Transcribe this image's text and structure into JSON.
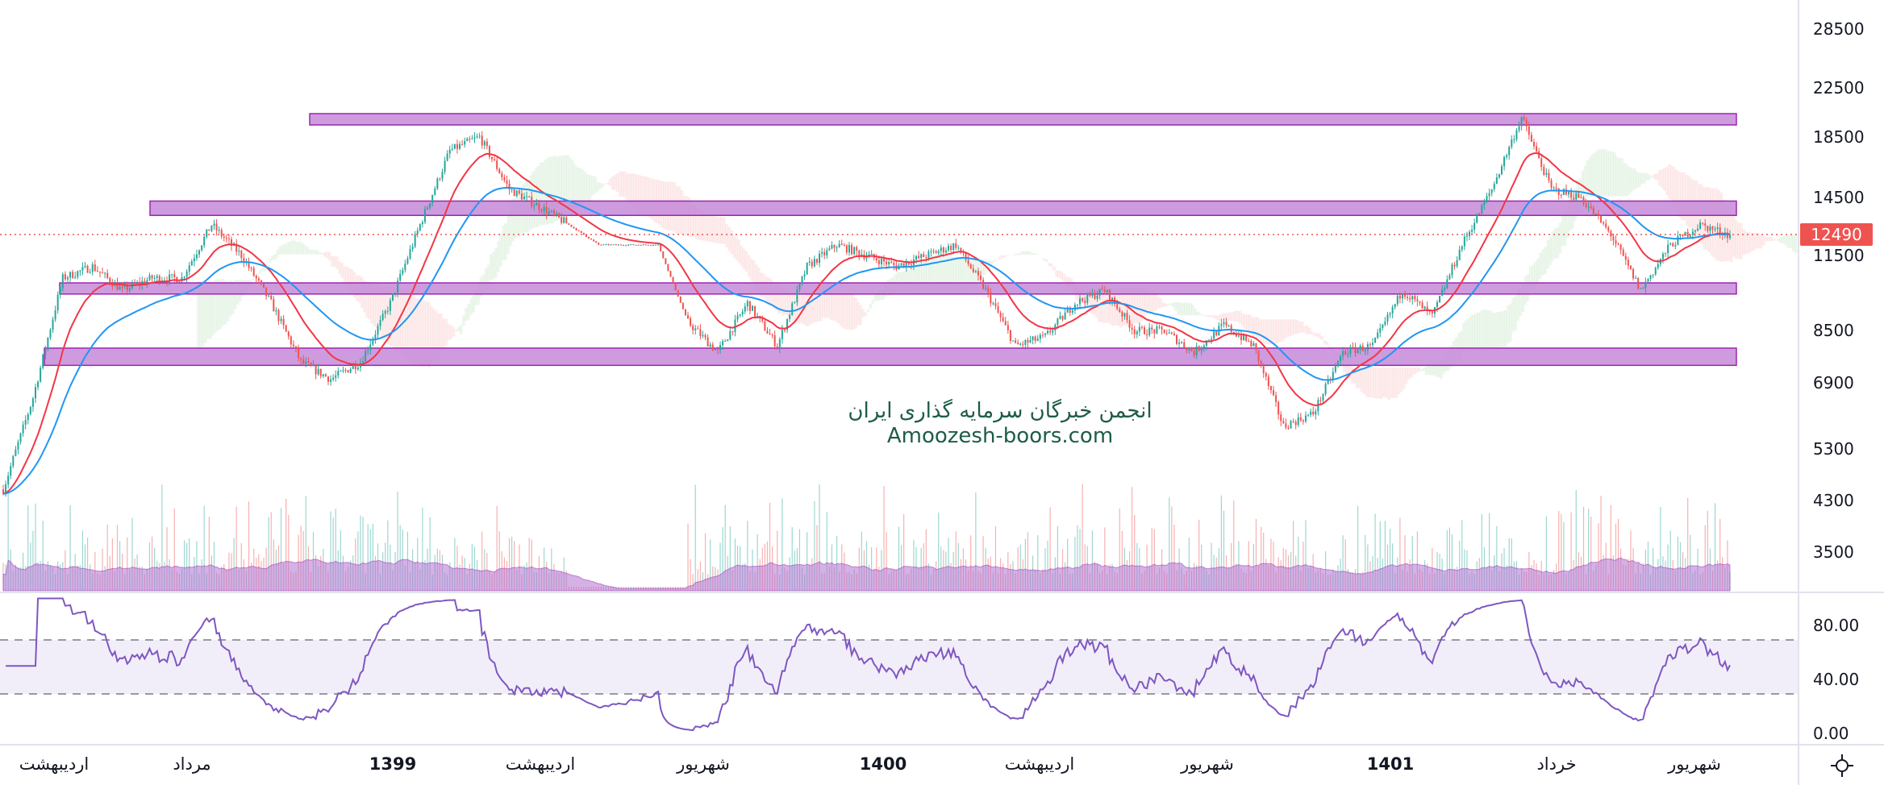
{
  "watermark": {
    "line1": "انجمن خبرگان سرمایه گذاری ایران",
    "line2": "Amoozesh-boors.com"
  },
  "price_axis": {
    "ticks": [
      "28500",
      "22500",
      "18500",
      "14500",
      "11500",
      "8500",
      "6900",
      "5300",
      "4300",
      "3500"
    ],
    "scale": "log"
  },
  "rsi_axis": {
    "ticks": [
      "80.00",
      "40.00",
      "0.00"
    ],
    "band": [
      30,
      70
    ]
  },
  "last_price": {
    "value": "12490",
    "color": "#ef5350"
  },
  "time_axis": {
    "labels": [
      {
        "text": "اردیبهشت",
        "year": false
      },
      {
        "text": "مرداد",
        "year": false
      },
      {
        "text": "1399",
        "year": true
      },
      {
        "text": "اردیبهشت",
        "year": false
      },
      {
        "text": "شهریور",
        "year": false
      },
      {
        "text": "1400",
        "year": true
      },
      {
        "text": "اردیبهشت",
        "year": false
      },
      {
        "text": "شهریور",
        "year": false
      },
      {
        "text": "1401",
        "year": true
      },
      {
        "text": "خرداد",
        "year": false
      },
      {
        "text": "شهریور",
        "year": false
      }
    ]
  },
  "settings_icon": "gear-icon",
  "chart_data": {
    "type": "candlestick",
    "price_path_approx": [
      4500,
      6500,
      10500,
      11000,
      10000,
      10500,
      10500,
      13000,
      11500,
      9500,
      7500,
      7000,
      7500,
      9500,
      13000,
      17500,
      18500,
      15000,
      14000,
      13000,
      12000,
      12000,
      12000,
      8800,
      7800,
      9500,
      8000,
      11000,
      12000,
      11500,
      11000,
      11500,
      12000,
      10000,
      8000,
      8300,
      9500,
      10000,
      8500,
      8500,
      7800,
      8700,
      8000,
      5800,
      6100,
      7800,
      8000,
      10000,
      9000,
      12000,
      15000,
      20000,
      15000,
      14500,
      12500,
      10000,
      12000,
      13000,
      12490
    ],
    "support_resistance_zones": [
      [
        19400,
        20300
      ],
      [
        13500,
        14300
      ],
      [
        9850,
        10300
      ],
      [
        7400,
        7930
      ]
    ],
    "indicators": [
      "moving average (red)",
      "moving average (blue)",
      "ichimoku cloud",
      "volume",
      "RSI"
    ],
    "colors": {
      "up": "#26a69a",
      "down": "#ef5350",
      "ma_fast": "#f23645",
      "ma_slow": "#2196f3",
      "zone": "#c58ad8",
      "zone_border": "#9c27b0",
      "rsi": "#7e57c2",
      "volume_ma": "#b173d1"
    }
  }
}
